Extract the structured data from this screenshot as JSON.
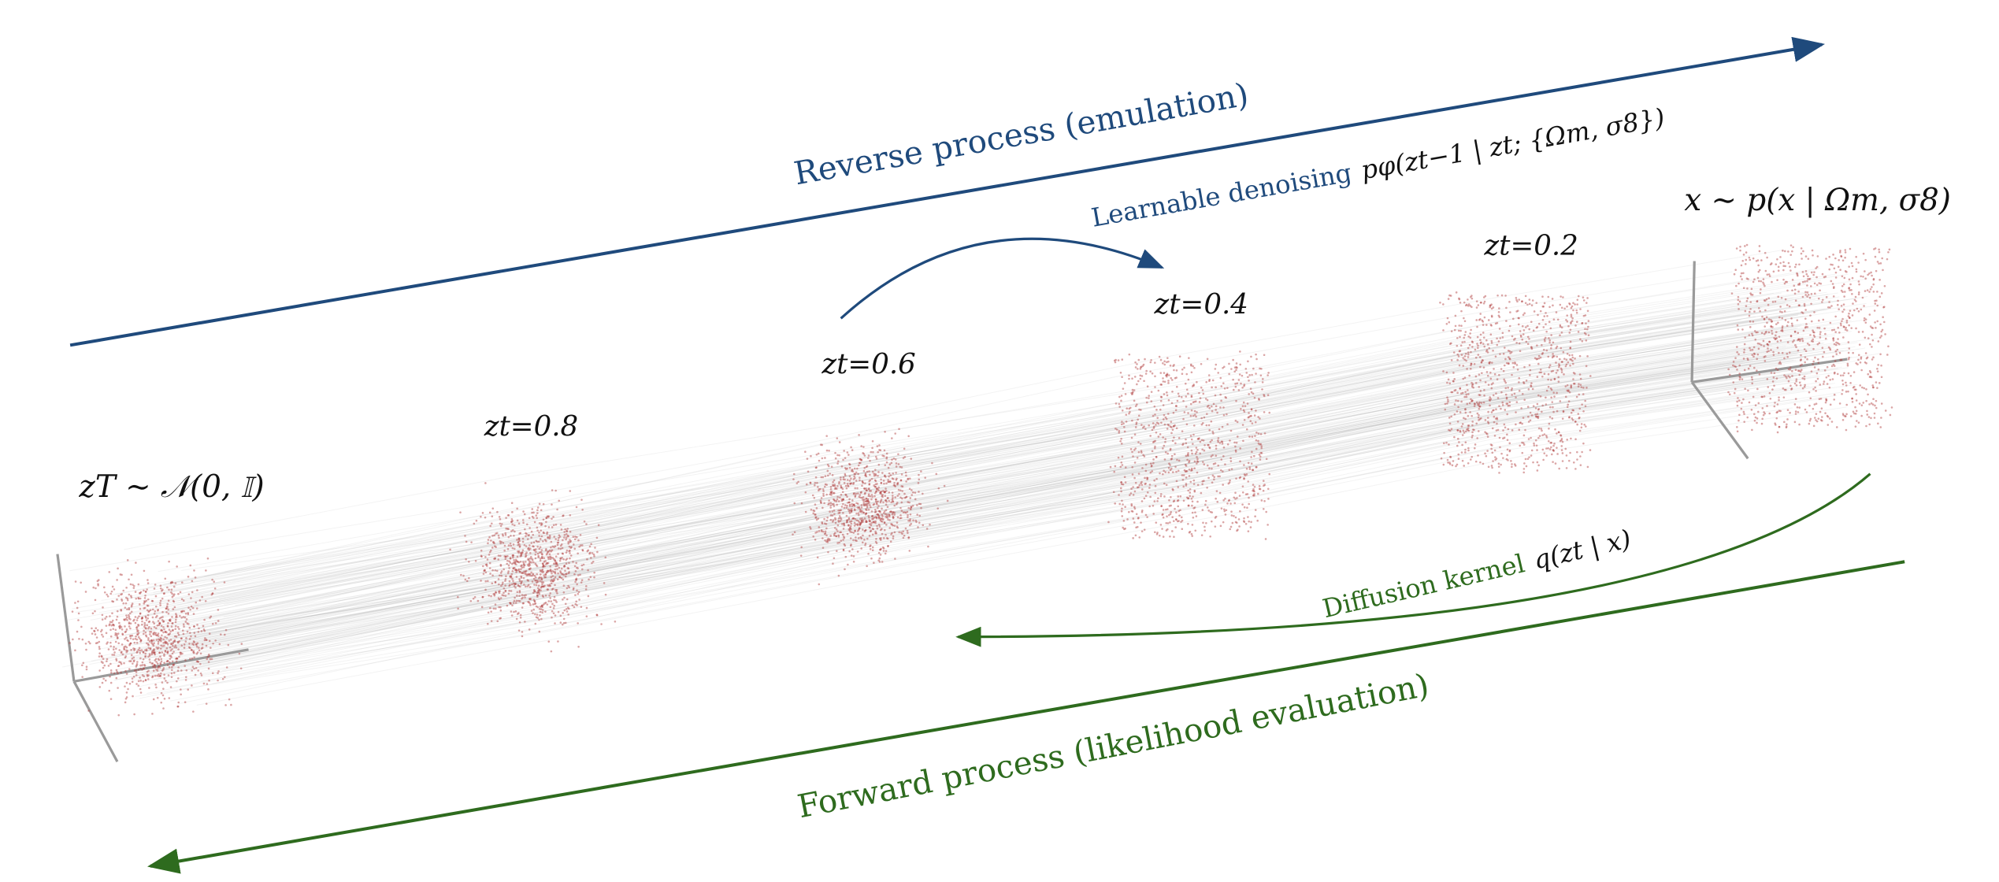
{
  "colors": {
    "reverse": "#1f4a7c",
    "forward": "#2e6b1e",
    "points": "#b03a3a",
    "trajectories": "#9a9a9a",
    "axes": "#9a9a9a"
  },
  "reverse_label": "Reverse process (emulation)",
  "denoising_label": "Learnable denoising",
  "denoising_formula": "pφ(zt−1 | zt; {Ωm, σ8})",
  "forward_label": "Forward process (likelihood evaluation)",
  "kernel_label": "Diffusion kernel",
  "kernel_formula": "q(zt | x)",
  "data_label": "x ∼ p(x | Ωm, σ8)",
  "stages": [
    {
      "label": "zT ∼ 𝒩(0, 𝕀)",
      "t": 1.0
    },
    {
      "label": "zt=0.8",
      "t": 0.8
    },
    {
      "label": "zt=0.6",
      "t": 0.6
    },
    {
      "label": "zt=0.4",
      "t": 0.4
    },
    {
      "label": "zt=0.2",
      "t": 0.2
    }
  ]
}
